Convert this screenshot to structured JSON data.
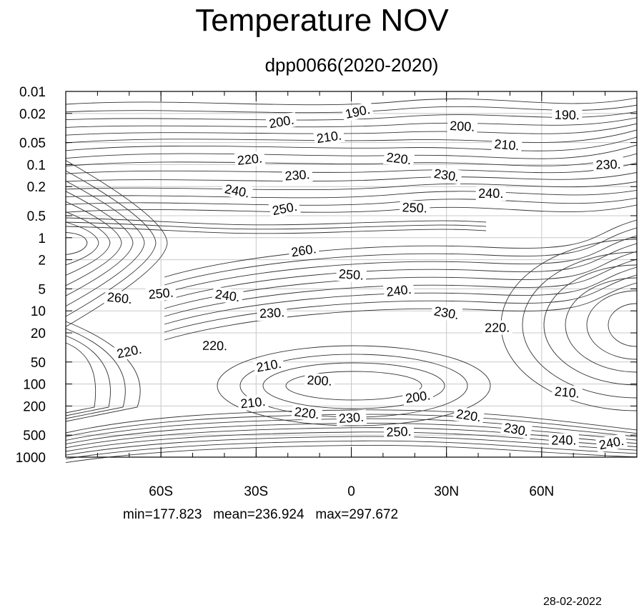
{
  "figure": {
    "title": "Temperature NOV",
    "subtitle": "dpp0066(2020-2020)",
    "stats": "min=177.823   mean=236.924   max=297.672",
    "date": "28-02-2022"
  },
  "chart_data": {
    "type": "contour",
    "title": "Temperature NOV",
    "subtitle": "dpp0066(2020-2020)",
    "x_axis": {
      "scale": "linear",
      "range": [
        -90,
        90
      ],
      "ticks": [
        {
          "value": -60,
          "label": "60S"
        },
        {
          "value": -30,
          "label": "30S"
        },
        {
          "value": 0,
          "label": "0"
        },
        {
          "value": 30,
          "label": "30N"
        },
        {
          "value": 60,
          "label": "60N"
        }
      ]
    },
    "y_axis": {
      "scale": "log",
      "inverted": true,
      "range": [
        1000,
        0.01
      ],
      "ticks": [
        {
          "value": 0.01,
          "label": "0.01"
        },
        {
          "value": 0.02,
          "label": "0.02"
        },
        {
          "value": 0.05,
          "label": "0.05"
        },
        {
          "value": 0.1,
          "label": "0.1"
        },
        {
          "value": 0.2,
          "label": "0.2"
        },
        {
          "value": 0.5,
          "label": "0.5"
        },
        {
          "value": 1,
          "label": "1"
        },
        {
          "value": 2,
          "label": "2"
        },
        {
          "value": 5,
          "label": "5"
        },
        {
          "value": 10,
          "label": "10"
        },
        {
          "value": 20,
          "label": "20"
        },
        {
          "value": 50,
          "label": "50"
        },
        {
          "value": 100,
          "label": "100"
        },
        {
          "value": 200,
          "label": "200"
        },
        {
          "value": 500,
          "label": "500"
        },
        {
          "value": 1000,
          "label": "1000"
        }
      ]
    },
    "grid": true,
    "contour_interval": 5,
    "contour_labels": [
      {
        "text": "190.",
        "lat": 2,
        "p": 0.019
      },
      {
        "text": "190.",
        "lat": 68,
        "p": 0.021
      },
      {
        "text": "200.",
        "lat": -22,
        "p": 0.026
      },
      {
        "text": "200.",
        "lat": 35,
        "p": 0.03
      },
      {
        "text": "210.",
        "lat": -7,
        "p": 0.042
      },
      {
        "text": "210.",
        "lat": 49,
        "p": 0.054
      },
      {
        "text": "220.",
        "lat": -32,
        "p": 0.085
      },
      {
        "text": "220.",
        "lat": 15,
        "p": 0.083
      },
      {
        "text": "230.",
        "lat": -17,
        "p": 0.14
      },
      {
        "text": "230.",
        "lat": 30,
        "p": 0.14
      },
      {
        "text": "230.",
        "lat": 81,
        "p": 0.1
      },
      {
        "text": "240.",
        "lat": -36,
        "p": 0.23
      },
      {
        "text": "240.",
        "lat": 44,
        "p": 0.25
      },
      {
        "text": "250.",
        "lat": -21,
        "p": 0.4
      },
      {
        "text": "250.",
        "lat": 20,
        "p": 0.39
      },
      {
        "text": "260.",
        "lat": -15,
        "p": 1.5
      },
      {
        "text": "250.",
        "lat": 0,
        "p": 3.2
      },
      {
        "text": "240.",
        "lat": 15,
        "p": 5.3
      },
      {
        "text": "260.",
        "lat": -73,
        "p": 6.7
      },
      {
        "text": "250.",
        "lat": -60,
        "p": 5.8
      },
      {
        "text": "240.",
        "lat": -39,
        "p": 6.2
      },
      {
        "text": "230.",
        "lat": -25,
        "p": 10.7
      },
      {
        "text": "230.",
        "lat": 30,
        "p": 10.7
      },
      {
        "text": "220.",
        "lat": 46,
        "p": 17
      },
      {
        "text": "220.",
        "lat": -70,
        "p": 36
      },
      {
        "text": "220.",
        "lat": -43,
        "p": 30
      },
      {
        "text": "210.",
        "lat": -26,
        "p": 56
      },
      {
        "text": "200.",
        "lat": -10,
        "p": 90
      },
      {
        "text": "200.",
        "lat": 21,
        "p": 150
      },
      {
        "text": "210.",
        "lat": 68,
        "p": 130
      },
      {
        "text": "210.",
        "lat": -31,
        "p": 180
      },
      {
        "text": "220.",
        "lat": -14,
        "p": 250
      },
      {
        "text": "230.",
        "lat": 0,
        "p": 290
      },
      {
        "text": "220.",
        "lat": 37,
        "p": 270
      },
      {
        "text": "250.",
        "lat": 15,
        "p": 450
      },
      {
        "text": "230.",
        "lat": 52,
        "p": 420
      },
      {
        "text": "240.",
        "lat": 67,
        "p": 590
      },
      {
        "text": "240.",
        "lat": 82,
        "p": 640
      }
    ],
    "stats": {
      "min": 177.823,
      "mean": 236.924,
      "max": 297.672
    }
  }
}
